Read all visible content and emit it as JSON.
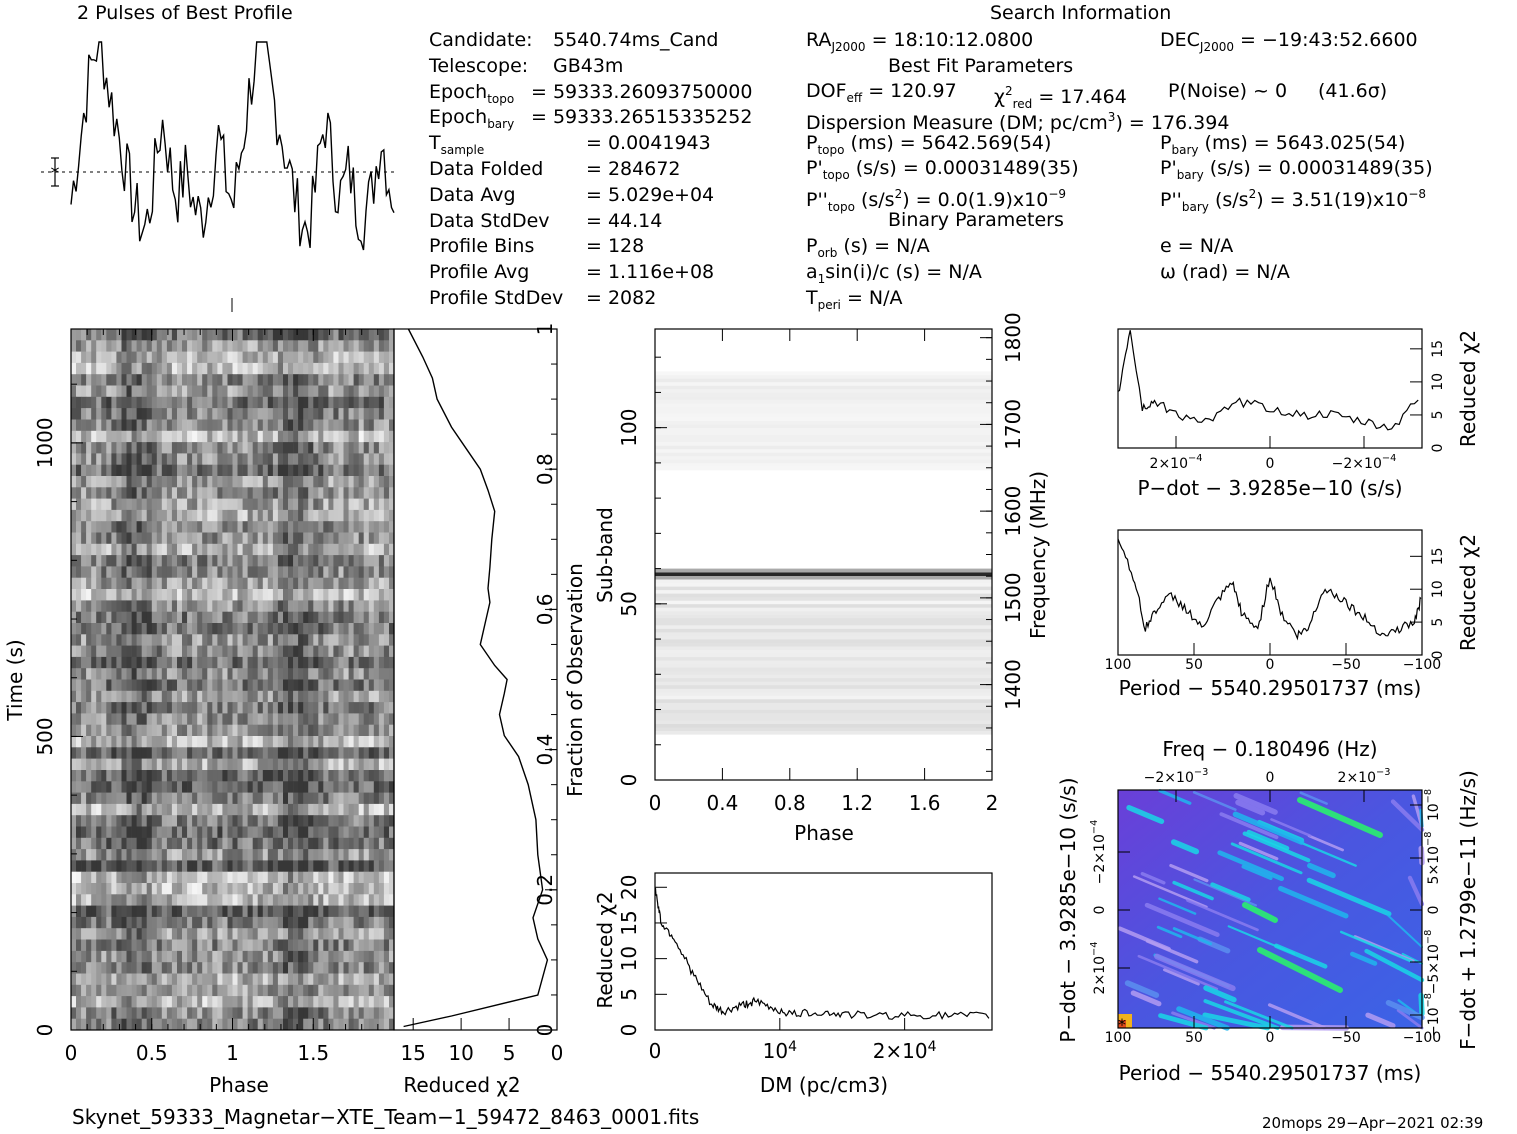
{
  "header": {
    "profile_title": "2 Pulses of Best Profile",
    "search_title": "Search Information"
  },
  "info_left": [
    {
      "k": "Candidate:",
      "v": "5540.74ms_Cand"
    },
    {
      "k": "Telescope:",
      "v": "GB43m"
    },
    {
      "k": "Epoch",
      "sub": "topo",
      "v": "= 59333.26093750000"
    },
    {
      "k": "Epoch",
      "sub": "bary",
      "v": "= 59333.26515335252"
    },
    {
      "k": "T",
      "sub": "sample",
      "v": "=   0.0041943"
    },
    {
      "k": "Data Folded",
      "v": "=   284672"
    },
    {
      "k": "Data Avg",
      "v": "=   5.029e+04"
    },
    {
      "k": "Data StdDev",
      "v": "=   44.14"
    },
    {
      "k": "Profile Bins",
      "v": "=   128"
    },
    {
      "k": "Profile Avg",
      "v": "=   1.116e+08"
    },
    {
      "k": "Profile StdDev",
      "v": "=   2082"
    }
  ],
  "info_mid": {
    "ra_label": "RA",
    "ra_sub": "J2000",
    "ra_value": "= 18:10:12.0800",
    "dec_label": "DEC",
    "dec_sub": "J2000",
    "dec_value": "= −19:43:52.6600",
    "bestfit_title": "Best Fit Parameters",
    "dof_label": "DOF",
    "dof_sub": "eff",
    "dof_value": "= 120.97",
    "chi_label": "χ",
    "chi_sup": "2",
    "chi_sub": "red",
    "chi_value": "= 17.464",
    "pnoise": "P(Noise) ~ 0",
    "sigma": "(41.6σ)",
    "dm_line": "Dispersion Measure (DM; pc/cm",
    "dm_sup": "3",
    "dm_value": ") = 176.394",
    "ptopo_label": "P",
    "ptopo_sub": "topo",
    "ptopo_value": "(ms) =  5642.569(54)",
    "pdtopo_label": "P'",
    "pdtopo_sub": "topo",
    "pdtopo_value": "(s/s) =  0.00031489(35)",
    "pddtopo_label": "P''",
    "pddtopo_sub": "topo",
    "pddtopo_value": "(s/s",
    "pddtopo_sup": "2",
    "pddtopo_value2": ") = 0.0(1.9)x10",
    "pddtopo_exp": "−9",
    "binary_title": "Binary Parameters",
    "porb": "P",
    "porb_sub": "orb",
    "porb_value": "(s) = N/A",
    "a1": "a",
    "a1_sub": "1",
    "a1_value": "sin(i)/c (s) = N/A",
    "tperi": "T",
    "tperi_sub": "peri",
    "tperi_value": "= N/A"
  },
  "info_right": {
    "pbary_label": "P",
    "pbary_sub": "bary",
    "pbary_value": "(ms) =  5643.025(54)",
    "pdbary_label": "P'",
    "pdbary_sub": "bary",
    "pdbary_value": "(s/s) =  0.00031489(35)",
    "pddbary_label": "P''",
    "pddbary_sub": "bary",
    "pddbary_value": "(s/s",
    "pddbary_sup": "2",
    "pddbary_value2": ") =  3.51(19)x10",
    "pddbary_exp": "−8",
    "e": "e = N/A",
    "omega": "ω (rad) = N/A"
  },
  "footer": {
    "filename": "Skynet_59333_Magnetar−XTE_Team−1_59472_8463_0001.fits",
    "stamp": "20mops 29−Apr−2021 02:39"
  },
  "chart_data": [
    {
      "id": "profile",
      "type": "line",
      "title": "2 Pulses of Best Profile",
      "x_range": [
        0,
        2
      ],
      "description_phase_peaks": [
        0.4,
        1.4
      ],
      "shape": [
        0.32,
        0.4,
        0.48,
        0.55,
        0.62,
        0.7,
        0.78,
        0.84,
        0.9,
        0.95,
        0.98,
        1.0,
        0.97,
        0.92,
        0.85,
        0.8,
        0.74,
        0.7,
        0.66,
        0.6,
        0.55,
        0.5,
        0.45,
        0.4,
        0.35,
        0.3,
        0.28,
        0.25,
        0.22,
        0.22,
        0.25,
        0.3,
        0.38,
        0.46,
        0.55,
        0.62,
        0.66,
        0.62,
        0.55,
        0.48,
        0.42,
        0.38,
        0.36,
        0.38,
        0.42,
        0.46,
        0.44,
        0.38,
        0.32,
        0.3,
        0.28,
        0.26,
        0.28,
        0.32,
        0.36,
        0.42,
        0.48,
        0.55,
        0.6,
        0.55,
        0.48,
        0.42,
        0.38,
        0.34
      ]
    },
    {
      "id": "time-phase",
      "type": "heatmap",
      "xlabel": "Phase",
      "ylabel": "Time (s)",
      "x_range": [
        0,
        2
      ],
      "x_ticks": [
        "0",
        "0.5",
        "1",
        "1.5"
      ],
      "y_ticks": [
        "0",
        "500",
        "1000"
      ],
      "y_range": [
        0,
        1194
      ]
    },
    {
      "id": "time-chi",
      "type": "line",
      "xlabel": "Reduced χ2",
      "ylabel": "Fraction of Observation",
      "x_ticks": [
        "15",
        "10",
        "5",
        "0"
      ],
      "y_ticks": [
        "0",
        "0.2",
        "0.4",
        "0.6",
        "0.8",
        "1"
      ],
      "x_range": [
        17,
        0
      ],
      "points": [
        [
          16,
          0.005
        ],
        [
          11,
          0.02
        ],
        [
          2,
          0.05
        ],
        [
          1,
          0.1
        ],
        [
          2,
          0.13
        ],
        [
          2.5,
          0.16
        ],
        [
          1.5,
          0.2
        ],
        [
          2,
          0.25
        ],
        [
          2.2,
          0.3
        ],
        [
          3,
          0.35
        ],
        [
          4,
          0.39
        ],
        [
          5.5,
          0.42
        ],
        [
          6,
          0.45
        ],
        [
          5.5,
          0.48
        ],
        [
          5.2,
          0.5
        ],
        [
          6.5,
          0.52
        ],
        [
          8,
          0.55
        ],
        [
          7.5,
          0.58
        ],
        [
          7,
          0.61
        ],
        [
          7.2,
          0.63
        ],
        [
          7,
          0.66
        ],
        [
          6.8,
          0.7
        ],
        [
          6.5,
          0.74
        ],
        [
          7.2,
          0.77
        ],
        [
          8,
          0.8
        ],
        [
          9.5,
          0.83
        ],
        [
          11,
          0.86
        ],
        [
          12.5,
          0.9
        ],
        [
          13,
          0.93
        ],
        [
          14,
          0.96
        ],
        [
          15.5,
          1.0
        ]
      ]
    },
    {
      "id": "subband-phase",
      "type": "heatmap",
      "xlabel": "Phase",
      "ylabel": "Sub-band",
      "y2label": "Frequency (MHz)",
      "x_ticks": [
        "0",
        "0.4",
        "0.8",
        "1.2",
        "1.6",
        "2"
      ],
      "y_ticks": [
        "0",
        "50",
        "100"
      ],
      "y2_ticks": [
        "1400",
        "1500",
        "1600",
        "1700",
        "1800"
      ],
      "x_range": [
        0,
        2
      ],
      "y_range": [
        0,
        128
      ]
    },
    {
      "id": "dm-chi",
      "type": "line",
      "xlabel": "DM (pc/cm3)",
      "ylabel": "Reduced χ2",
      "x_ticks": [
        "10",
        "2×10"
      ],
      "x_tick_exp": "4",
      "y_ticks": [
        "0",
        "5",
        "10",
        "15",
        "20"
      ],
      "y_range": [
        0,
        22
      ],
      "x_range": [
        0,
        27000
      ],
      "points": [
        [
          0,
          20
        ],
        [
          500,
          15
        ],
        [
          1500,
          13
        ],
        [
          3000,
          8
        ],
        [
          4500,
          3.5
        ],
        [
          5500,
          2.5
        ],
        [
          7000,
          3.5
        ],
        [
          8000,
          4
        ],
        [
          9500,
          3
        ],
        [
          11000,
          2.2
        ],
        [
          13000,
          2.5
        ],
        [
          15000,
          2.2
        ],
        [
          18000,
          2
        ],
        [
          21000,
          2.1
        ],
        [
          24000,
          2
        ],
        [
          27000,
          2
        ]
      ]
    },
    {
      "id": "pdot-chi",
      "type": "line",
      "xlabel": "P−dot − 3.9285e−10 (s/s)",
      "ylabel": "Reduced χ2",
      "x_ticks": [
        "2×10",
        "0",
        "−2×10"
      ],
      "x_tick_exp": "−4",
      "y_ticks": [
        "0",
        "5",
        "10",
        "15"
      ],
      "y_range": [
        0,
        18
      ],
      "points": [
        [
          0,
          8
        ],
        [
          0.04,
          18
        ],
        [
          0.08,
          6
        ],
        [
          0.12,
          7
        ],
        [
          0.2,
          5
        ],
        [
          0.3,
          4
        ],
        [
          0.4,
          7
        ],
        [
          0.5,
          6
        ],
        [
          0.6,
          5
        ],
        [
          0.7,
          5
        ],
        [
          0.8,
          4
        ],
        [
          0.9,
          3
        ],
        [
          1.0,
          8
        ]
      ]
    },
    {
      "id": "period-chi",
      "type": "line",
      "xlabel": "Period − 5540.29501737 (ms)",
      "ylabel": "Reduced χ2",
      "x_ticks": [
        "100",
        "50",
        "0",
        "−50",
        "−100"
      ],
      "y_ticks": [
        "0",
        "5",
        "10",
        "15"
      ],
      "y_range": [
        0,
        19
      ],
      "points": [
        [
          100,
          18
        ],
        [
          90,
          12
        ],
        [
          82,
          4
        ],
        [
          75,
          7
        ],
        [
          65,
          9
        ],
        [
          55,
          7
        ],
        [
          45,
          4
        ],
        [
          35,
          8
        ],
        [
          25,
          11
        ],
        [
          18,
          6
        ],
        [
          8,
          4
        ],
        [
          0,
          12
        ],
        [
          -8,
          6
        ],
        [
          -18,
          3
        ],
        [
          -25,
          4
        ],
        [
          -35,
          10
        ],
        [
          -45,
          9
        ],
        [
          -55,
          7
        ],
        [
          -65,
          5
        ],
        [
          -75,
          3
        ],
        [
          -85,
          4
        ],
        [
          -95,
          5
        ],
        [
          -100,
          9
        ]
      ]
    },
    {
      "id": "ppdot-plane",
      "type": "heatmap",
      "title": "Freq − 0.180496 (Hz)",
      "xlabel": "Period − 5540.29501737 (ms)",
      "ylabel": "P−dot − 3.9285e−10 (s/s)",
      "y2label": "F−dot + 1.2799e−11 (Hz/s)",
      "x_ticks": [
        "100",
        "50",
        "0",
        "−50",
        "−100"
      ],
      "top_ticks": [
        "−2×10",
        "0",
        "2×10"
      ],
      "top_tick_exp": "−3",
      "y_ticks": [
        "2×10",
        "0",
        "−2×10"
      ],
      "y_tick_exp": "−4",
      "y2_ticks": [
        "−10",
        "−5×10",
        "0",
        "5×10",
        "10"
      ],
      "y2_tick_exp": "−8"
    }
  ]
}
